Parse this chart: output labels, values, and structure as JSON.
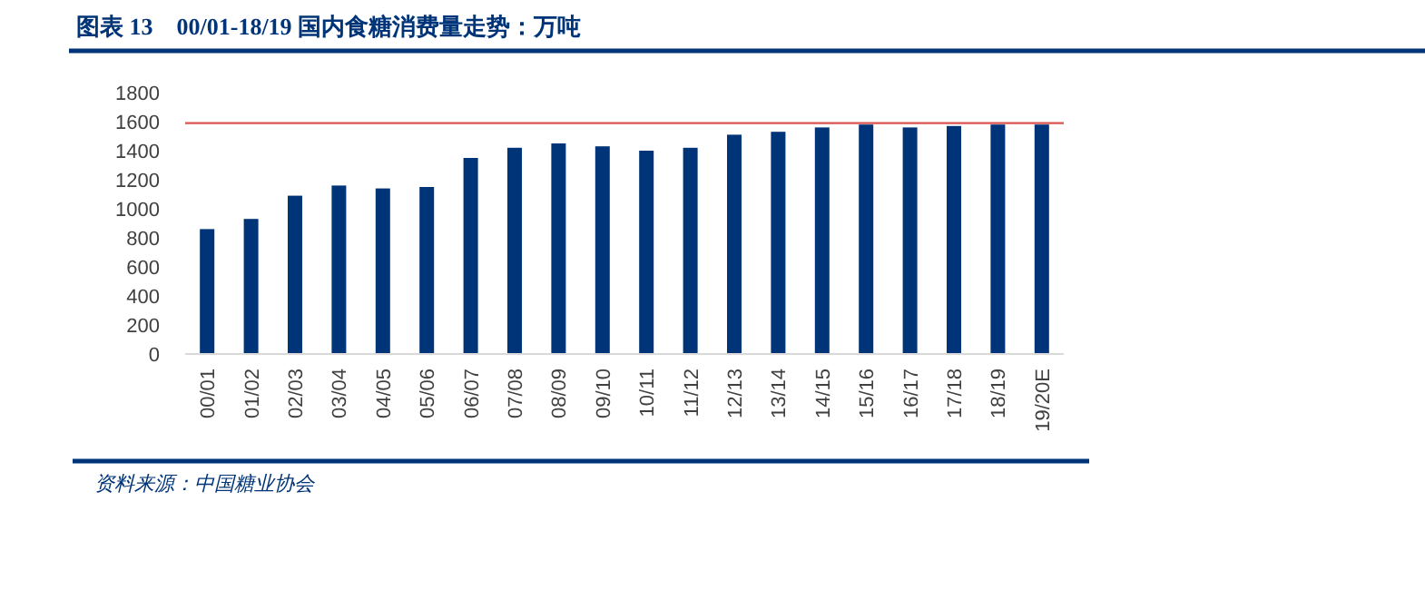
{
  "chart_data": {
    "type": "bar",
    "title": "图表 13　00/01-18/19 国内食糖消费量走势：万吨",
    "categories": [
      "00/01",
      "01/02",
      "02/03",
      "03/04",
      "04/05",
      "05/06",
      "06/07",
      "07/08",
      "08/09",
      "09/10",
      "10/11",
      "11/12",
      "12/13",
      "13/14",
      "14/15",
      "15/16",
      "16/17",
      "17/18",
      "18/19",
      "19/20E"
    ],
    "values": [
      860,
      930,
      1090,
      1160,
      1140,
      1150,
      1350,
      1420,
      1450,
      1430,
      1400,
      1420,
      1510,
      1530,
      1560,
      1580,
      1560,
      1570,
      1580,
      1580
    ],
    "color": "#003478",
    "ylim": [
      0,
      1800
    ],
    "yticks": [
      0,
      200,
      400,
      600,
      800,
      1000,
      1200,
      1400,
      1600,
      1800
    ],
    "grid": false,
    "ref_lines": [
      {
        "axis": "y",
        "value": 1590,
        "color": "#d9534f"
      }
    ],
    "annotations": [
      "资料来源：中国糖业协会"
    ]
  }
}
